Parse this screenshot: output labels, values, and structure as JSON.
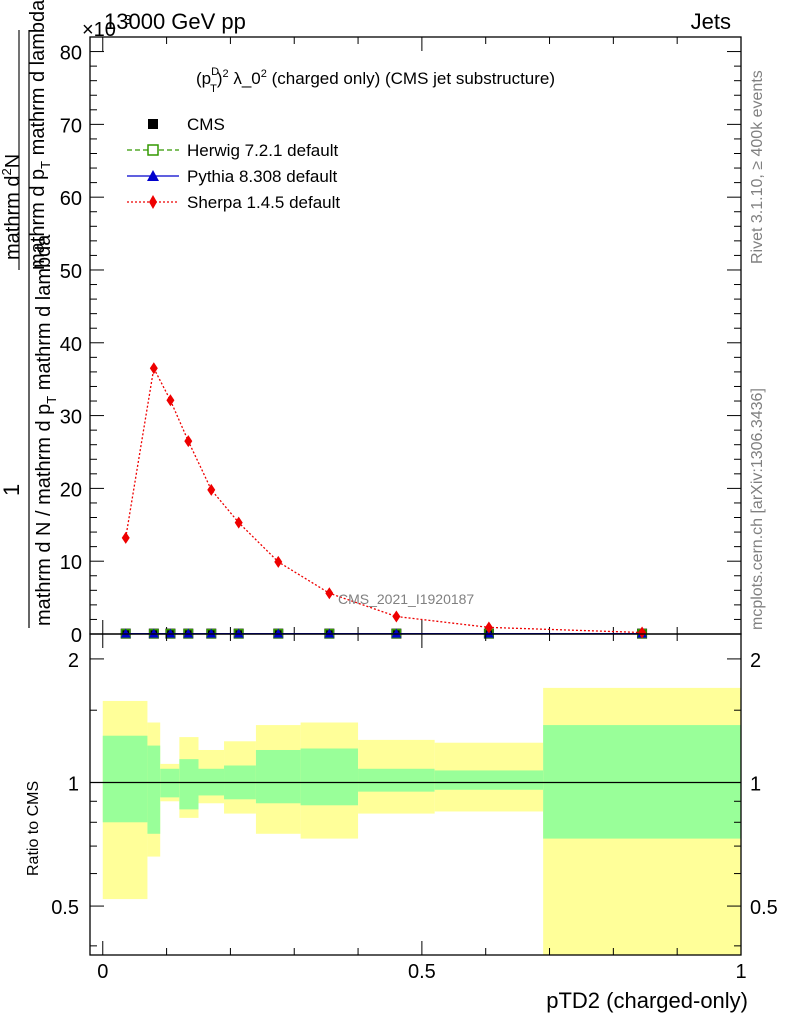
{
  "header": {
    "left": "13000 GeV pp",
    "right": "Jets",
    "exponent": "×10",
    "exponent_power": "-3"
  },
  "side_texts": {
    "rivet": "Rivet 3.1.10, ≥ 400k events",
    "mcplots": "mcplots.cern.ch [arXiv:1306.3436]"
  },
  "watermark": "CMS_2021_I1920187",
  "colors": {
    "herwig": "#339900",
    "pythia": "#0000cc",
    "sherpa": "#ee0000",
    "band_inner": "#99ff99",
    "band_outer": "#ffff99"
  },
  "chart_data": [
    {
      "type": "line",
      "title": "(p_T^D)^2 λ_0^2 (charged only) (CMS jet substructure)",
      "title_parts": {
        "p": "(p",
        "sup_d": "D",
        "sub_t": "T",
        "close": ")",
        "sup_2": "2",
        "lambda": " λ_0",
        "sup_2b": "2",
        "rest": " (charged only) (CMS jet substructure)"
      },
      "ylabel_parts": {
        "one": "1",
        "den": "mathrm d N / mathrm d p",
        "den_sub": "T",
        "den_rest": "mathrm d N / mathrm d p",
        "num": "mathrm d",
        "num_sup": "2",
        "num_rest": "N",
        "frac_den": "mathrm d p",
        "frac_den_sub": "T",
        "frac_den_rest": " mathrm d lambda"
      },
      "ylim": [
        0,
        82
      ],
      "xlim": [
        -0.02,
        1.0
      ],
      "y_major_ticks": [
        0,
        10,
        20,
        30,
        40,
        50,
        60,
        70,
        80
      ],
      "y_tick_labels": [
        "0",
        "10",
        "20",
        "30",
        "40",
        "50",
        "60",
        "70",
        "80"
      ],
      "legend": [
        {
          "name": "CMS",
          "marker": "square",
          "color": "#000000"
        },
        {
          "name": "Herwig 7.2.1 default",
          "marker": "open-square",
          "color": "#339900",
          "dash": "dashed"
        },
        {
          "name": "Pythia 8.308 default",
          "marker": "triangle",
          "color": "#0000cc",
          "dash": "solid"
        },
        {
          "name": "Sherpa 1.4.5 default",
          "marker": "diamond",
          "color": "#ee0000",
          "dash": "dotted"
        }
      ],
      "series": [
        {
          "name": "CMS",
          "x": [
            0.036,
            0.08,
            0.106,
            0.134,
            0.17,
            0.213,
            0.275,
            0.355,
            0.46,
            0.605,
            0.845
          ],
          "values": [
            0.05,
            0.05,
            0.05,
            0.05,
            0.05,
            0.05,
            0.05,
            0.05,
            0.05,
            0.05,
            0.05
          ]
        },
        {
          "name": "Herwig 7.2.1 default",
          "x": [
            0.036,
            0.08,
            0.106,
            0.134,
            0.17,
            0.213,
            0.275,
            0.355,
            0.46,
            0.605,
            0.845
          ],
          "values": [
            0.05,
            0.05,
            0.05,
            0.05,
            0.05,
            0.05,
            0.05,
            0.05,
            0.05,
            0.05,
            0.05
          ]
        },
        {
          "name": "Pythia 8.308 default",
          "x": [
            0.036,
            0.08,
            0.106,
            0.134,
            0.17,
            0.213,
            0.275,
            0.355,
            0.46,
            0.605,
            0.845
          ],
          "values": [
            0.05,
            0.05,
            0.05,
            0.05,
            0.05,
            0.05,
            0.05,
            0.05,
            0.05,
            0.05,
            0.05
          ]
        },
        {
          "name": "Sherpa 1.4.5 default",
          "x": [
            0.036,
            0.08,
            0.106,
            0.134,
            0.17,
            0.213,
            0.275,
            0.355,
            0.46,
            0.605,
            0.845
          ],
          "values": [
            13.2,
            36.5,
            32.1,
            26.5,
            19.8,
            15.3,
            9.9,
            5.6,
            2.4,
            0.9,
            0.2
          ]
        }
      ]
    },
    {
      "type": "area",
      "ylabel": "Ratio to CMS",
      "xlabel": "pTD2 (charged-only)",
      "ylim": [
        0.38,
        2.3
      ],
      "xlim": [
        -0.02,
        1.0
      ],
      "y_tick_values": [
        0.5,
        1,
        2
      ],
      "y_tick_labels": [
        "0.5",
        "1",
        "2"
      ],
      "x_tick_values": [
        0,
        0.5,
        1
      ],
      "x_tick_labels": [
        "0",
        "0.5",
        "1"
      ],
      "reference_line": 1,
      "bins": [
        {
          "lo": 0.0,
          "hi": 0.07,
          "inner": [
            0.8,
            1.3
          ],
          "outer": [
            0.52,
            1.58
          ]
        },
        {
          "lo": 0.07,
          "hi": 0.09,
          "inner": [
            0.75,
            1.23
          ],
          "outer": [
            0.66,
            1.4
          ]
        },
        {
          "lo": 0.09,
          "hi": 0.12,
          "inner": [
            0.92,
            1.08
          ],
          "outer": [
            0.9,
            1.11
          ]
        },
        {
          "lo": 0.12,
          "hi": 0.15,
          "inner": [
            0.86,
            1.14
          ],
          "outer": [
            0.82,
            1.29
          ]
        },
        {
          "lo": 0.15,
          "hi": 0.19,
          "inner": [
            0.93,
            1.08
          ],
          "outer": [
            0.89,
            1.2
          ]
        },
        {
          "lo": 0.19,
          "hi": 0.24,
          "inner": [
            0.91,
            1.1
          ],
          "outer": [
            0.84,
            1.26
          ]
        },
        {
          "lo": 0.24,
          "hi": 0.31,
          "inner": [
            0.89,
            1.2
          ],
          "outer": [
            0.75,
            1.38
          ]
        },
        {
          "lo": 0.31,
          "hi": 0.4,
          "inner": [
            0.88,
            1.21
          ],
          "outer": [
            0.73,
            1.4
          ]
        },
        {
          "lo": 0.4,
          "hi": 0.52,
          "inner": [
            0.95,
            1.08
          ],
          "outer": [
            0.84,
            1.27
          ]
        },
        {
          "lo": 0.52,
          "hi": 0.69,
          "inner": [
            0.96,
            1.07
          ],
          "outer": [
            0.85,
            1.25
          ]
        },
        {
          "lo": 0.69,
          "hi": 1.0,
          "inner": [
            0.73,
            1.38
          ],
          "outer": [
            0.38,
            1.7
          ]
        }
      ]
    }
  ]
}
